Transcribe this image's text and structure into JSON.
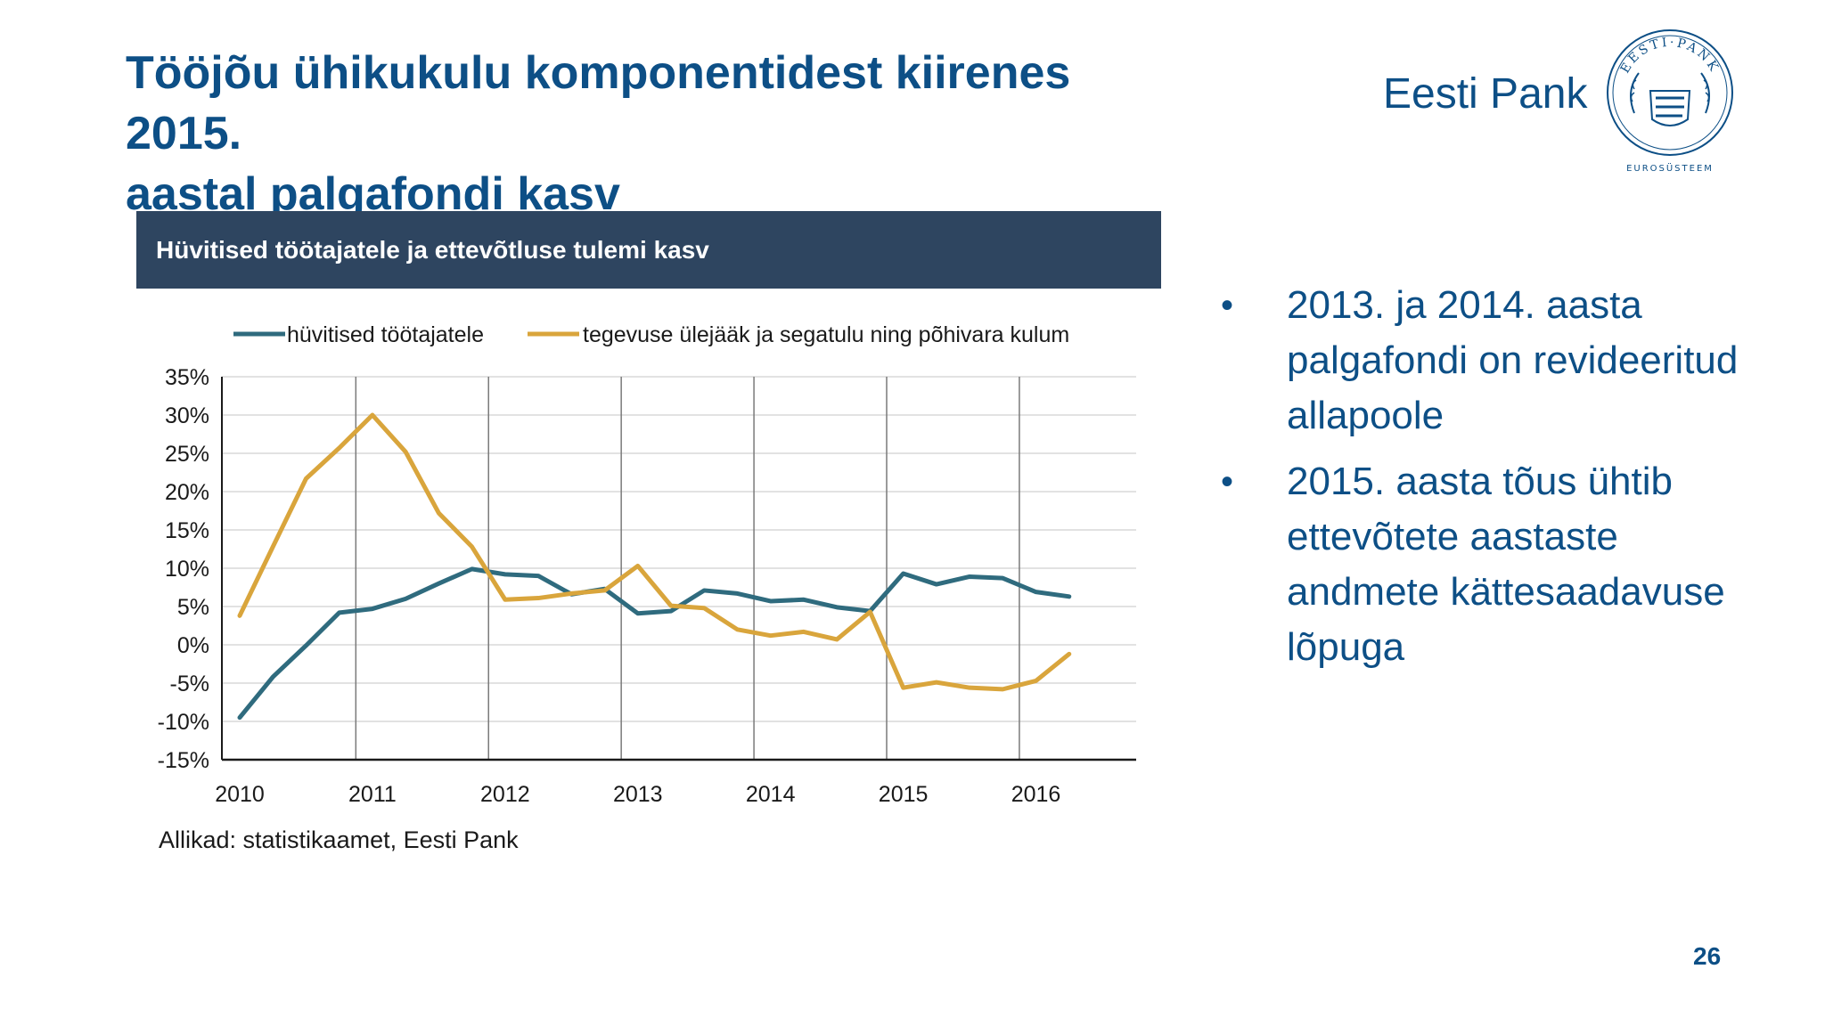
{
  "slide": {
    "title_line1": "Tööjõu ühikukulu komponentidest kiirenes 2015.",
    "title_line2": "aastal palgafondi kasv",
    "brand": "Eesti Pank",
    "seal_text_top": "EESTI PANK",
    "seal_text_bottom": "EUROSÜSTEEM",
    "chart_header": "Hüvitised töötajatele ja ettevõtluse tulemi kasv",
    "source": "Allikad: statistikaamet, Eesti Pank",
    "bullets": [
      "2013. ja 2014. aasta palgafondi on revideeritud allapoole",
      "2015. aasta tõus ühtib ettevõtete aastaste andmete kättesaadavuse lõpuga"
    ],
    "page_number": "26"
  },
  "colors": {
    "title": "#0d4f86",
    "header_bg": "#2e4560",
    "series_compensation": "#2f6b7e",
    "series_surplus": "#d9a53c"
  },
  "chart_data": {
    "type": "line",
    "title": "Hüvitised töötajatele ja ettevõtluse tulemi kasv",
    "ylim": [
      -15,
      35
    ],
    "yticks": [
      35,
      30,
      25,
      20,
      15,
      10,
      5,
      0,
      -5,
      -10,
      -15
    ],
    "ytick_labels": [
      "35%",
      "30%",
      "25%",
      "20%",
      "15%",
      "10%",
      "5%",
      "0%",
      "-5%",
      "-10%",
      "-15%"
    ],
    "xlim": [
      2010,
      2016.5
    ],
    "year_labels": [
      "2010",
      "2011",
      "2012",
      "2013",
      "2014",
      "2015",
      "2016"
    ],
    "grid": "horizontal and yearly vertical lines",
    "legend": "top",
    "x": [
      2010.0,
      2010.25,
      2010.5,
      2010.75,
      2011.0,
      2011.25,
      2011.5,
      2011.75,
      2012.0,
      2012.25,
      2012.5,
      2012.75,
      2013.0,
      2013.25,
      2013.5,
      2013.75,
      2014.0,
      2014.25,
      2014.5,
      2014.75,
      2015.0,
      2015.25,
      2015.5,
      2015.75,
      2016.0,
      2016.25
    ],
    "series": [
      {
        "name": "hüvitised töötajatele",
        "values": [
          -9.5,
          -4.2,
          -0.1,
          4.2,
          4.7,
          6.0,
          8.0,
          9.9,
          9.2,
          9.0,
          6.6,
          7.3,
          4.1,
          4.4,
          7.1,
          6.7,
          5.7,
          5.9,
          4.9,
          4.4,
          9.3,
          7.9,
          8.9,
          8.7,
          6.9,
          6.3
        ]
      },
      {
        "name": "tegevuse ülejääk ja segatulu ning põhivara kulum",
        "values": [
          3.8,
          12.8,
          21.7,
          25.7,
          30.0,
          25.2,
          17.2,
          12.8,
          5.9,
          6.1,
          6.7,
          7.1,
          10.3,
          5.1,
          4.8,
          2.0,
          1.2,
          1.7,
          0.7,
          4.3,
          -5.6,
          -4.9,
          -5.6,
          -5.8,
          -4.7,
          -1.2
        ]
      }
    ]
  }
}
